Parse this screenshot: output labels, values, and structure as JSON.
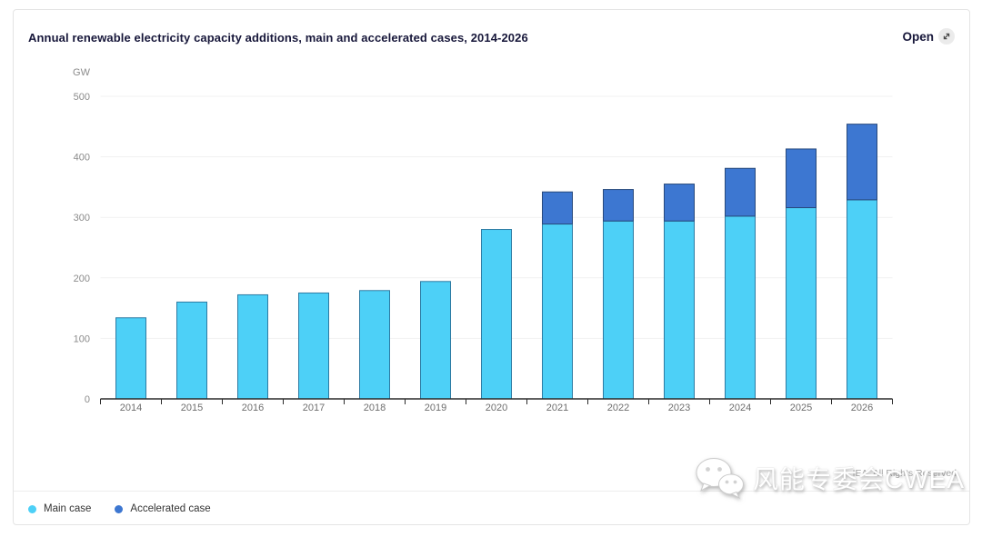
{
  "card": {
    "title": "Annual renewable electricity capacity additions, main and accelerated cases, 2014-2026",
    "open_label": "Open",
    "open_icon": "expand-diagonal-arrow-icon"
  },
  "chart_data": {
    "type": "bar",
    "stacked": true,
    "title": "Annual renewable electricity capacity additions, main and accelerated cases, 2014-2026",
    "unit_label": "GW",
    "xlabel": "",
    "ylabel": "GW",
    "categories": [
      "2014",
      "2015",
      "2016",
      "2017",
      "2018",
      "2019",
      "2020",
      "2021",
      "2022",
      "2023",
      "2024",
      "2025",
      "2026"
    ],
    "series": [
      {
        "name": "Main case",
        "color": "#4DD0F7",
        "border_color": "#2D7BA3",
        "values": [
          134,
          160,
          172,
          175,
          179,
          194,
          280,
          289,
          294,
          294,
          302,
          316,
          329
        ]
      },
      {
        "name": "Accelerated case",
        "color": "#3D77D1",
        "border_color": "#27497C",
        "values": [
          0,
          0,
          0,
          0,
          0,
          0,
          0,
          53,
          52,
          61,
          79,
          97,
          125
        ]
      }
    ],
    "ylim": [
      0,
      500
    ],
    "yticks": [
      0,
      100,
      200,
      300,
      400,
      500
    ],
    "grid": true,
    "gridline_color": "#f1f1f1",
    "axis_color": "#2b2b2b",
    "legend_position": "bottom-left"
  },
  "footer": {
    "rights": "IEA. All Rights Reserved",
    "watermark": {
      "icon": "wechat-icon",
      "text": "风能专委会CWEA"
    }
  }
}
